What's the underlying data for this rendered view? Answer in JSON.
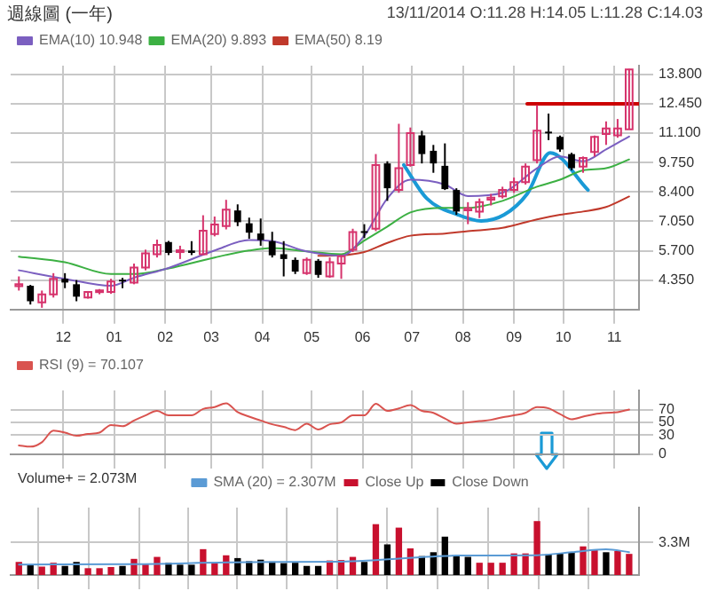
{
  "chart_data": [
    {
      "type": "candlestick",
      "subtitle": "週線圖 (一年)",
      "annotations": [
        "13/11/2014 O:11.28 H:14.05 L:11.28 C:14.03"
      ],
      "x": [
        "2013-11-04",
        "2013-11-11",
        "2013-11-18",
        "2013-11-25",
        "2013-12-02",
        "2013-12-09",
        "2013-12-16",
        "2013-12-23",
        "2013-12-30",
        "2014-01-06",
        "2014-01-13",
        "2014-01-20",
        "2014-01-27",
        "2014-02-03",
        "2014-02-10",
        "2014-02-17",
        "2014-02-24",
        "2014-03-03",
        "2014-03-10",
        "2014-03-17",
        "2014-03-24",
        "2014-03-31",
        "2014-04-07",
        "2014-04-14",
        "2014-04-21",
        "2014-04-28",
        "2014-05-05",
        "2014-05-12",
        "2014-05-19",
        "2014-05-26",
        "2014-06-02",
        "2014-06-09",
        "2014-06-16",
        "2014-06-23",
        "2014-06-30",
        "2014-07-07",
        "2014-07-14",
        "2014-07-21",
        "2014-07-28",
        "2014-08-04",
        "2014-08-11",
        "2014-08-18",
        "2014-08-25",
        "2014-09-01",
        "2014-09-08",
        "2014-09-15",
        "2014-09-22",
        "2014-09-29",
        "2014-10-06",
        "2014-10-13",
        "2014-10-20",
        "2014-10-27",
        "2014-11-03",
        "2014-11-10"
      ],
      "ohlc": [
        [
          4.07,
          4.52,
          3.87,
          4.16
        ],
        [
          4.09,
          4.13,
          3.23,
          3.38
        ],
        [
          3.33,
          3.87,
          3.08,
          3.7
        ],
        [
          3.7,
          4.67,
          3.55,
          4.41
        ],
        [
          4.41,
          4.67,
          3.98,
          4.24
        ],
        [
          4.16,
          4.35,
          3.38,
          3.59
        ],
        [
          3.55,
          3.85,
          3.5,
          3.81
        ],
        [
          3.8,
          3.94,
          3.7,
          3.88
        ],
        [
          3.81,
          4.41,
          3.72,
          4.29
        ],
        [
          4.37,
          4.46,
          3.98,
          4.33
        ],
        [
          4.24,
          5.11,
          4.16,
          4.93
        ],
        [
          4.93,
          5.75,
          4.8,
          5.58
        ],
        [
          5.54,
          6.21,
          5.39,
          5.97
        ],
        [
          6.1,
          6.15,
          5.5,
          5.6
        ],
        [
          5.65,
          5.93,
          5.32,
          5.72
        ],
        [
          5.71,
          6.14,
          5.5,
          5.6
        ],
        [
          5.54,
          7.33,
          5.5,
          6.62
        ],
        [
          6.47,
          7.27,
          6.36,
          6.9
        ],
        [
          6.83,
          8.04,
          6.68,
          7.59
        ],
        [
          7.55,
          7.83,
          6.83,
          7.01
        ],
        [
          6.96,
          7.22,
          6.25,
          6.53
        ],
        [
          6.49,
          7.18,
          5.93,
          6.19
        ],
        [
          6.14,
          6.57,
          5.39,
          5.49
        ],
        [
          5.54,
          6.14,
          4.52,
          5.32
        ],
        [
          5.28,
          5.39,
          4.63,
          4.74
        ],
        [
          4.67,
          5.39,
          4.59,
          5.28
        ],
        [
          5.24,
          5.32,
          4.46,
          4.59
        ],
        [
          4.52,
          5.39,
          4.46,
          5.17
        ],
        [
          5.11,
          5.49,
          4.41,
          5.45
        ],
        [
          5.74,
          6.71,
          5.64,
          6.56
        ],
        [
          6.6,
          6.92,
          6.28,
          6.56
        ],
        [
          6.71,
          10.14,
          6.6,
          9.64
        ],
        [
          9.71,
          9.81,
          7.99,
          8.57
        ],
        [
          8.49,
          11.53,
          8.36,
          9.49
        ],
        [
          9.64,
          11.36,
          9.56,
          11.1
        ],
        [
          11.0,
          11.21,
          9.71,
          10.14
        ],
        [
          10.29,
          10.56,
          9.28,
          9.71
        ],
        [
          9.6,
          10.63,
          8.49,
          8.53
        ],
        [
          8.49,
          8.57,
          7.35,
          7.5
        ],
        [
          7.56,
          7.93,
          6.92,
          7.65
        ],
        [
          7.5,
          8.1,
          7.2,
          7.93
        ],
        [
          8.05,
          8.31,
          7.78,
          8.14
        ],
        [
          8.2,
          8.64,
          8.1,
          8.49
        ],
        [
          8.49,
          9.06,
          8.36,
          8.85
        ],
        [
          8.85,
          9.71,
          8.74,
          9.56
        ],
        [
          9.86,
          12.39,
          9.71,
          11.21
        ],
        [
          11.17,
          12.0,
          10.78,
          11.15
        ],
        [
          10.93,
          10.99,
          10.24,
          10.35
        ],
        [
          10.14,
          10.2,
          9.39,
          9.49
        ],
        [
          9.56,
          10.03,
          9.28,
          9.96
        ],
        [
          10.24,
          10.99,
          10.03,
          10.93
        ],
        [
          11.06,
          11.64,
          10.56,
          11.32
        ],
        [
          11.0,
          11.75,
          10.89,
          11.32
        ],
        [
          11.28,
          14.05,
          11.28,
          14.03
        ]
      ],
      "colors": [
        "#d6336c",
        "#000000",
        "#d6336c",
        "#d6336c",
        "#000000",
        "#000000",
        "#d6336c",
        "#d6336c",
        "#d6336c",
        "#000000",
        "#d6336c",
        "#d6336c",
        "#d6336c",
        "#000000",
        "#d6336c",
        "#000000",
        "#d6336c",
        "#d6336c",
        "#d6336c",
        "#000000",
        "#000000",
        "#000000",
        "#000000",
        "#000000",
        "#000000",
        "#d6336c",
        "#000000",
        "#d6336c",
        "#d6336c",
        "#d6336c",
        "#000000",
        "#d6336c",
        "#000000",
        "#d6336c",
        "#d6336c",
        "#000000",
        "#000000",
        "#000000",
        "#000000",
        "#d6336c",
        "#d6336c",
        "#d6336c",
        "#d6336c",
        "#d6336c",
        "#d6336c",
        "#d6336c",
        "#000000",
        "#000000",
        "#000000",
        "#d6336c",
        "#d6336c",
        "#d6336c",
        "#d6336c",
        "#d6336c"
      ],
      "series": [
        {
          "name": "EMA(10) 10.948",
          "type": "line",
          "color": "#7b5fc0",
          "x": [
            "2013-11-04",
            "2013-12-02",
            "2013-12-30",
            "2014-01-13",
            "2014-02-03",
            "2014-03-03",
            "2014-03-24",
            "2014-04-07",
            "2014-04-28",
            "2014-05-19",
            "2014-06-02",
            "2014-06-16",
            "2014-06-30",
            "2014-07-21",
            "2014-08-04",
            "2014-08-25",
            "2014-09-15",
            "2014-09-29",
            "2014-10-13",
            "2014-10-27",
            "2014-11-10"
          ],
          "values": [
            4.8,
            4.41,
            4.09,
            4.46,
            4.91,
            5.71,
            6.19,
            6.14,
            5.67,
            5.47,
            6.39,
            8.1,
            8.96,
            8.74,
            8.21,
            8.36,
            9.49,
            10.03,
            9.81,
            10.35,
            10.948
          ]
        },
        {
          "name": "EMA(20) 9.893",
          "type": "line",
          "color": "#3cb043",
          "x": [
            "2013-11-04",
            "2013-12-02",
            "2013-12-30",
            "2014-01-13",
            "2014-02-03",
            "2014-03-03",
            "2014-03-24",
            "2014-04-07",
            "2014-04-28",
            "2014-05-19",
            "2014-06-02",
            "2014-06-16",
            "2014-06-30",
            "2014-07-21",
            "2014-08-04",
            "2014-08-25",
            "2014-09-15",
            "2014-09-29",
            "2014-10-13",
            "2014-10-27",
            "2014-11-10"
          ],
          "values": [
            5.43,
            5.17,
            4.63,
            4.63,
            4.89,
            5.39,
            5.71,
            5.82,
            5.67,
            5.54,
            6.17,
            6.81,
            7.46,
            7.67,
            7.67,
            7.99,
            8.64,
            8.96,
            9.39,
            9.49,
            9.893
          ]
        },
        {
          "name": "EMA(50) 8.19",
          "type": "line",
          "color": "#c0392b",
          "x": [
            "2014-05-05",
            "2014-05-19",
            "2014-06-02",
            "2014-06-16",
            "2014-06-30",
            "2014-07-21",
            "2014-08-04",
            "2014-08-25",
            "2014-09-15",
            "2014-09-29",
            "2014-10-13",
            "2014-10-27",
            "2014-11-10"
          ],
          "values": [
            5.47,
            5.49,
            5.64,
            6.06,
            6.39,
            6.49,
            6.6,
            6.75,
            7.14,
            7.35,
            7.5,
            7.71,
            8.19
          ]
        },
        {
          "type": "line",
          "color": "#1a9ad6",
          "x": [
            "2014-06-26",
            "2014-07-10",
            "2014-07-29",
            "2014-08-12",
            "2014-08-26",
            "2014-09-09",
            "2014-09-23",
            "2014-10-16"
          ],
          "values": [
            9.64,
            8.1,
            7.35,
            7.07,
            7.35,
            8.31,
            10.2,
            8.49
          ]
        },
        {
          "type": "line",
          "color": "#cc0000",
          "x": [
            "2014-09-09",
            "2014-11-16"
          ],
          "values": [
            12.45,
            12.45
          ]
        }
      ],
      "xlim": [
        "2013-10-30",
        "2014-11-16"
      ],
      "xticks": [
        {
          "value": "2013-12-01",
          "label": "12"
        },
        {
          "value": "2014-01-01",
          "label": "01"
        },
        {
          "value": "2014-02-01",
          "label": "02"
        },
        {
          "value": "2014-03-01",
          "label": "03"
        },
        {
          "value": "2014-04-01",
          "label": "04"
        },
        {
          "value": "2014-05-01",
          "label": "05"
        },
        {
          "value": "2014-06-01",
          "label": "06"
        },
        {
          "value": "2014-07-01",
          "label": "07"
        },
        {
          "value": "2014-08-01",
          "label": "08"
        },
        {
          "value": "2014-09-01",
          "label": "09"
        },
        {
          "value": "2014-10-01",
          "label": "10"
        },
        {
          "value": "2014-11-01",
          "label": "11"
        }
      ],
      "ylim": [
        3.0,
        14.2
      ],
      "yticks": [
        {
          "value": 4.35,
          "label": "4.350"
        },
        {
          "value": 5.7,
          "label": "5.700"
        },
        {
          "value": 7.05,
          "label": "7.050"
        },
        {
          "value": 8.4,
          "label": "8.400"
        },
        {
          "value": 9.75,
          "label": "9.750"
        },
        {
          "value": 11.1,
          "label": "11.100"
        },
        {
          "value": 12.45,
          "label": "12.450"
        },
        {
          "value": 13.8,
          "label": "13.800"
        }
      ],
      "grid": true,
      "legend": "top left"
    },
    {
      "type": "line",
      "x": [
        "2013-11-04",
        "2013-11-11",
        "2013-11-18",
        "2013-11-25",
        "2013-12-02",
        "2013-12-09",
        "2013-12-16",
        "2013-12-23",
        "2013-12-30",
        "2014-01-06",
        "2014-01-13",
        "2014-01-20",
        "2014-01-27",
        "2014-02-03",
        "2014-02-10",
        "2014-02-17",
        "2014-02-24",
        "2014-03-03",
        "2014-03-10",
        "2014-03-17",
        "2014-03-24",
        "2014-03-31",
        "2014-04-07",
        "2014-04-14",
        "2014-04-21",
        "2014-04-28",
        "2014-05-05",
        "2014-05-12",
        "2014-05-19",
        "2014-05-26",
        "2014-06-02",
        "2014-06-09",
        "2014-06-16",
        "2014-06-23",
        "2014-06-30",
        "2014-07-07",
        "2014-07-14",
        "2014-07-21",
        "2014-07-28",
        "2014-08-04",
        "2014-08-11",
        "2014-08-18",
        "2014-08-25",
        "2014-09-01",
        "2014-09-08",
        "2014-09-15",
        "2014-09-22",
        "2014-09-29",
        "2014-10-06",
        "2014-10-13",
        "2014-10-20",
        "2014-10-27",
        "2014-11-03",
        "2014-11-10"
      ],
      "series": [
        {
          "name": "RSI (9) = 70.107",
          "color": "#d9534f",
          "values": [
            14,
            12,
            19,
            37,
            34,
            29,
            32,
            34,
            46,
            44,
            53,
            61,
            68,
            61,
            61,
            61,
            71,
            74,
            80,
            66,
            59,
            53,
            47,
            43,
            38,
            48,
            39,
            47,
            50,
            61,
            61,
            79,
            68,
            72,
            77,
            68,
            65,
            56,
            48,
            50,
            52,
            54,
            58,
            61,
            65,
            74,
            72,
            63,
            55,
            59,
            63,
            65,
            66,
            70.107
          ]
        }
      ],
      "xlim": [
        "2013-10-30",
        "2014-11-16"
      ],
      "xticks": [
        "2013-12-01",
        "2014-01-01",
        "2014-02-01",
        "2014-03-01",
        "2014-04-01",
        "2014-05-01",
        "2014-06-01",
        "2014-07-01",
        "2014-08-01",
        "2014-09-01",
        "2014-10-01",
        "2014-11-01"
      ],
      "ylim": [
        0,
        100
      ],
      "yticks": [
        0,
        30,
        50,
        70
      ],
      "tick_labels": "y",
      "grid": true,
      "legend": "top left"
    },
    {
      "type": "bar",
      "annotations": [
        "Volume+ = 2.073M"
      ],
      "x": [
        "2013-11-04",
        "2013-11-11",
        "2013-11-18",
        "2013-11-25",
        "2013-12-02",
        "2013-12-09",
        "2013-12-16",
        "2013-12-23",
        "2013-12-30",
        "2014-01-06",
        "2014-01-13",
        "2014-01-20",
        "2014-01-27",
        "2014-02-03",
        "2014-02-10",
        "2014-02-17",
        "2014-02-24",
        "2014-03-03",
        "2014-03-10",
        "2014-03-17",
        "2014-03-24",
        "2014-03-31",
        "2014-04-07",
        "2014-04-14",
        "2014-04-21",
        "2014-04-28",
        "2014-05-05",
        "2014-05-12",
        "2014-05-19",
        "2014-05-26",
        "2014-06-02",
        "2014-06-09",
        "2014-06-16",
        "2014-06-23",
        "2014-06-30",
        "2014-07-07",
        "2014-07-14",
        "2014-07-21",
        "2014-07-28",
        "2014-08-04",
        "2014-08-11",
        "2014-08-18",
        "2014-08-25",
        "2014-09-01",
        "2014-09-08",
        "2014-09-15",
        "2014-09-22",
        "2014-09-29",
        "2014-10-06",
        "2014-10-13",
        "2014-10-20",
        "2014-10-27",
        "2014-11-03",
        "2014-11-10"
      ],
      "series": [
        {
          "name": "SMA (20) = 2.307M",
          "type": "line",
          "color": "#5b9bd5",
          "x": [
            "2013-11-04",
            "2014-01-13",
            "2014-03-24",
            "2014-05-19",
            "2014-06-09",
            "2014-07-28",
            "2014-09-15",
            "2014-10-06",
            "2014-10-27",
            "2014-11-10"
          ],
          "values": [
            1.06,
            1.1,
            1.3,
            1.34,
            1.5,
            1.96,
            2.0,
            2.3,
            2.6,
            2.307
          ]
        },
        {
          "name": "Close Up",
          "type": "bar",
          "color": "#c8102e",
          "values": [
            1.26,
            null,
            0.79,
            1.18,
            null,
            null,
            0.63,
            0.63,
            0.75,
            null,
            1.57,
            1.06,
            1.77,
            null,
            null,
            null,
            2.55,
            1.18,
            1.93,
            null,
            null,
            null,
            null,
            null,
            null,
            null,
            null,
            1.41,
            1.45,
            1.77,
            null,
            5.07,
            null,
            4.72,
            2.63,
            null,
            null,
            null,
            null,
            null,
            1.18,
            1.18,
            1.18,
            2.12,
            2.12,
            5.38,
            null,
            null,
            null,
            2.83,
            2.44,
            null,
            2.36,
            2.073
          ]
        },
        {
          "name": "Close Down",
          "type": "bar",
          "color": "#000000",
          "values": [
            null,
            0.94,
            null,
            null,
            0.86,
            1.26,
            null,
            null,
            null,
            0.86,
            null,
            null,
            null,
            1.18,
            0.98,
            0.98,
            null,
            null,
            null,
            1.65,
            1.34,
            1.49,
            1.3,
            1.14,
            1.18,
            0.86,
            0.86,
            null,
            null,
            null,
            1.26,
            null,
            3.03,
            null,
            null,
            1.85,
            2.24,
            3.81,
            1.85,
            1.77,
            null,
            null,
            null,
            null,
            null,
            null,
            2.04,
            2.12,
            2.24,
            null,
            null,
            2.24,
            null,
            null
          ]
        }
      ],
      "xlim": [
        "2013-10-30",
        "2014-11-16"
      ],
      "xticks": [
        "2013-12-01",
        "2014-01-01",
        "2014-02-01",
        "2014-03-01",
        "2014-04-01",
        "2014-05-01",
        "2014-06-01",
        "2014-07-01",
        "2014-08-01",
        "2014-09-01",
        "2014-10-01",
        "2014-11-01"
      ],
      "ylim": [
        0,
        6.8
      ],
      "yticks": [
        {
          "value": 3.3,
          "label": "3.3M"
        }
      ],
      "tick_labels": "y",
      "grid": true,
      "legend": "top"
    }
  ]
}
